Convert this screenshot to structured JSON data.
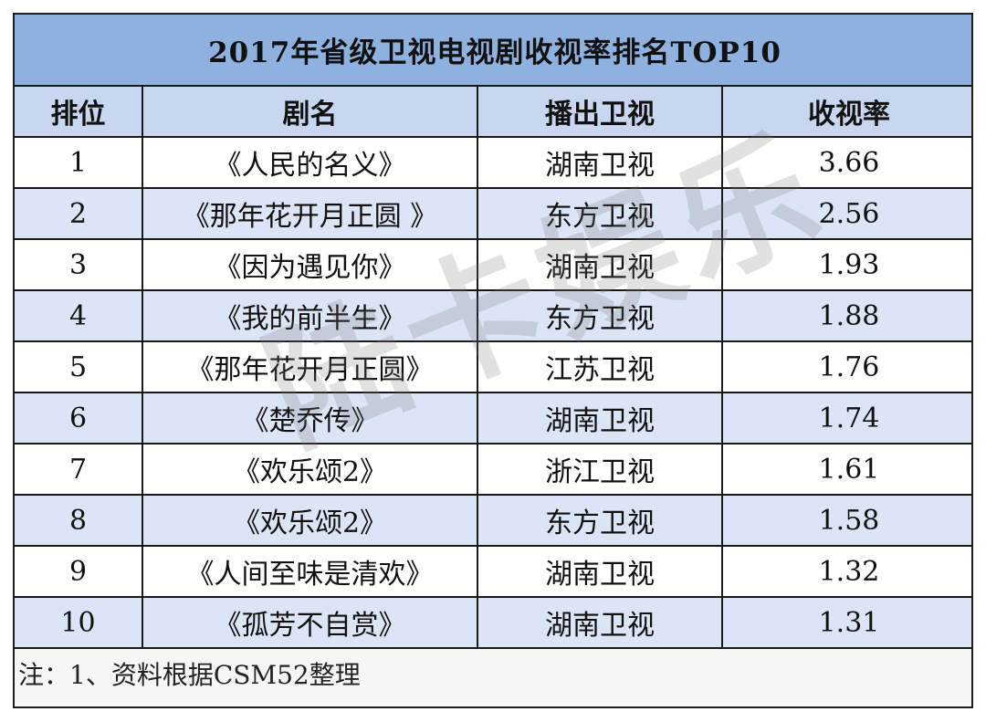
{
  "title": "2017年省级卫视电视剧收视率排名TOP10",
  "headers": [
    "排位",
    "剧名",
    "播出卫视",
    "收视率"
  ],
  "rows": [
    {
      "rank": "1",
      "name": "《人民的名义》",
      "channel": "湖南卫视",
      "rating": "3.66"
    },
    {
      "rank": "2",
      "name": "《那年花开月正圆 》",
      "channel": "东方卫视",
      "rating": "2.56"
    },
    {
      "rank": "3",
      "name": "《因为遇见你》",
      "channel": "湖南卫视",
      "rating": "1.93"
    },
    {
      "rank": "4",
      "name": "《我的前半生》",
      "channel": "东方卫视",
      "rating": "1.88"
    },
    {
      "rank": "5",
      "name": "《那年花开月正圆》",
      "channel": "江苏卫视",
      "rating": "1.76"
    },
    {
      "rank": "6",
      "name": "《楚乔传》",
      "channel": "湖南卫视",
      "rating": "1.74"
    },
    {
      "rank": "7",
      "name": "《欢乐颂2》",
      "channel": "浙江卫视",
      "rating": "1.61"
    },
    {
      "rank": "8",
      "name": "《欢乐颂2》",
      "channel": "东方卫视",
      "rating": "1.58"
    },
    {
      "rank": "9",
      "name": "《人间至味是清欢》",
      "channel": "湖南卫视",
      "rating": "1.32"
    },
    {
      "rank": "10",
      "name": "《孤芳不自赏》",
      "channel": "湖南卫视",
      "rating": "1.31"
    }
  ],
  "note": "注：1、资料根据CSM52整理",
  "watermark": "陆卡娱乐"
}
